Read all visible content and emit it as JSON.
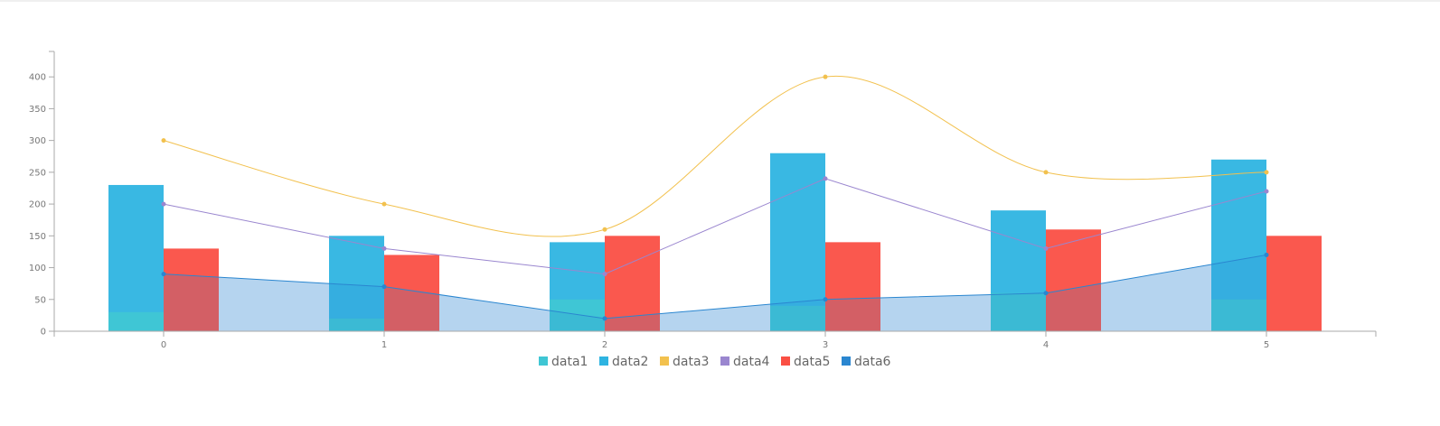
{
  "chart_data": {
    "type": "bar",
    "categories": [
      "0",
      "1",
      "2",
      "3",
      "4",
      "5"
    ],
    "ylim": [
      0,
      440
    ],
    "yticks": [
      0,
      50,
      100,
      150,
      200,
      250,
      300,
      350,
      400
    ],
    "grid": false,
    "legend_position": "bottom",
    "series": [
      {
        "name": "data1",
        "kind": "bar",
        "group": "left",
        "color": "#3fc6d4",
        "values": [
          30,
          20,
          50,
          40,
          60,
          50
        ]
      },
      {
        "name": "data2",
        "kind": "bar",
        "group": "left",
        "color": "#2eb4e1",
        "values": [
          230,
          150,
          140,
          280,
          190,
          270
        ]
      },
      {
        "name": "data3",
        "kind": "spline",
        "color": "#f2c14e",
        "values": [
          300,
          200,
          160,
          400,
          250,
          250
        ]
      },
      {
        "name": "data4",
        "kind": "line",
        "color": "#9a86cf",
        "values": [
          200,
          130,
          90,
          240,
          130,
          220
        ]
      },
      {
        "name": "data5",
        "kind": "bar",
        "group": "right",
        "color": "#fa4f44",
        "values": [
          130,
          120,
          150,
          140,
          160,
          150
        ]
      },
      {
        "name": "data6",
        "kind": "area",
        "color": "#2a86d0",
        "fill": "#d3e6f6",
        "values": [
          90,
          70,
          20,
          50,
          60,
          120
        ]
      }
    ]
  }
}
